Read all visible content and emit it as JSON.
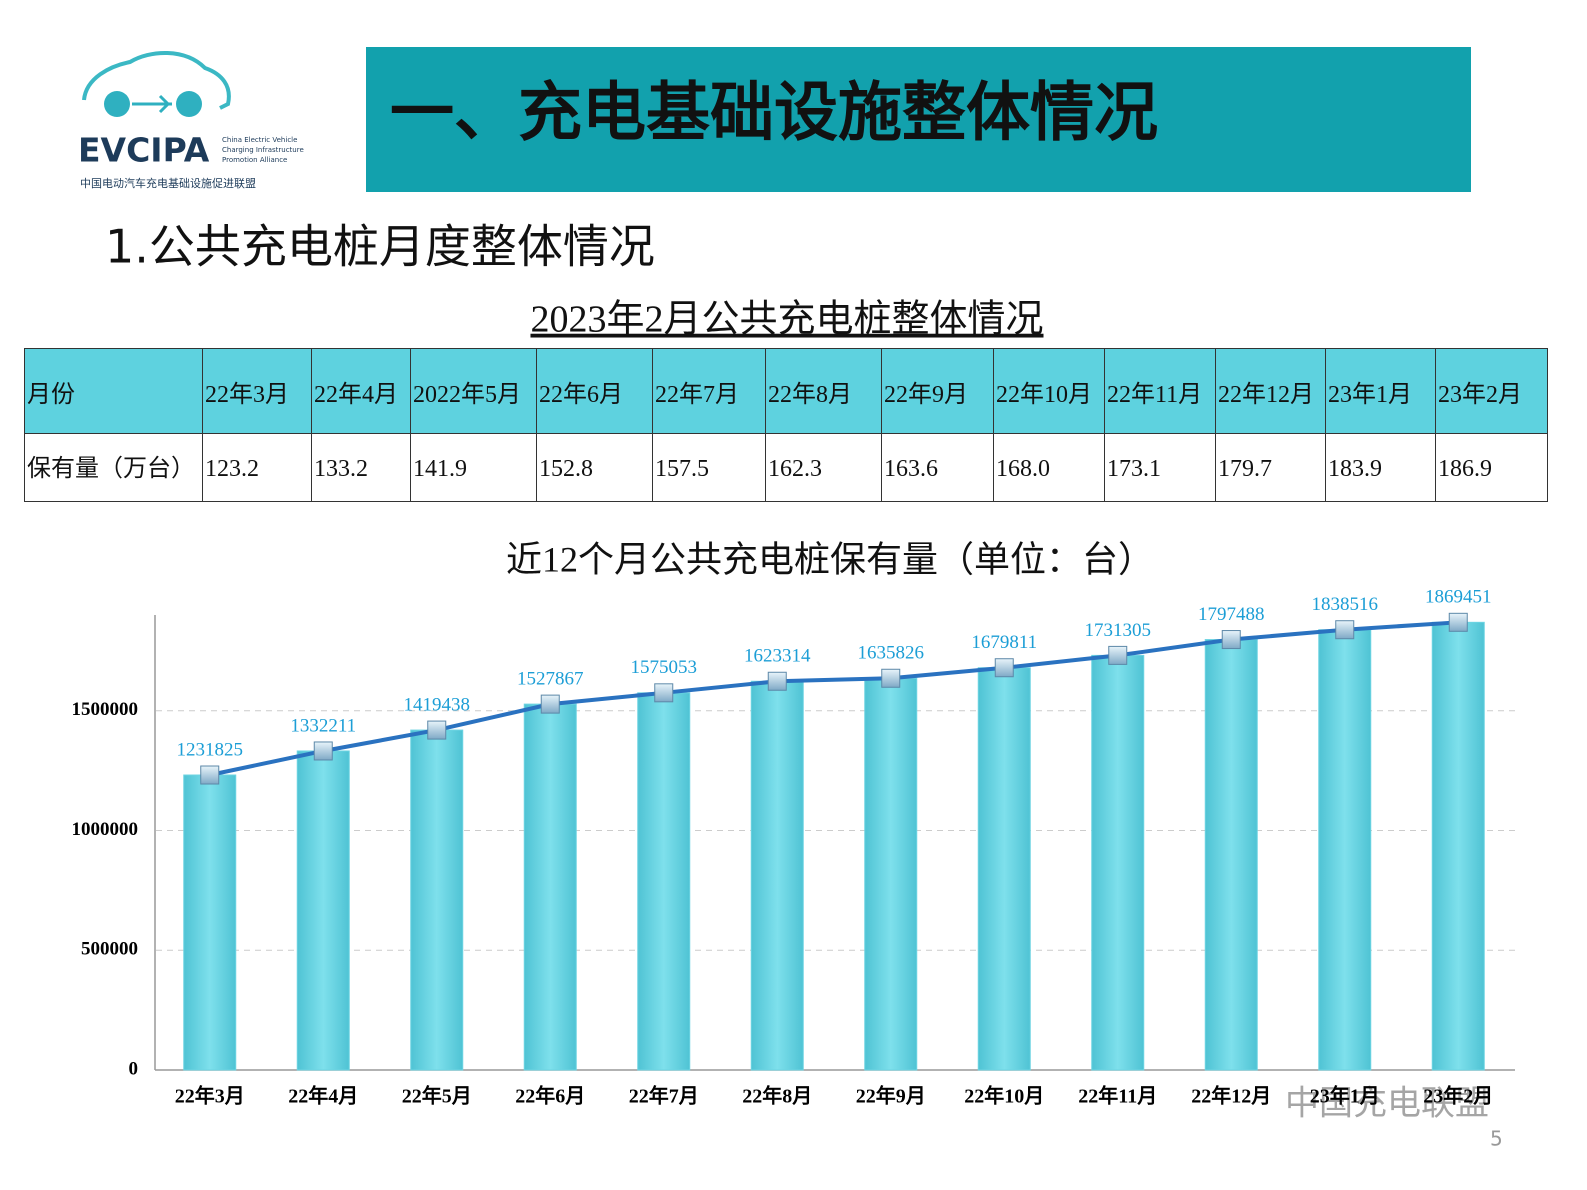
{
  "logo": {
    "name": "EVCIPA",
    "english": [
      "China Electric Vehicle",
      "Charging Infrastructure",
      "Promotion Alliance"
    ],
    "chinese": "中国电动汽车充电基础设施促进联盟"
  },
  "header": {
    "title": "一、充电基础设施整体情况",
    "subtitle": "1.公共充电桩月度整体情况"
  },
  "table": {
    "title": "2023年2月公共充电桩整体情况",
    "rows": [
      [
        "月份",
        "22年3月",
        "22年4月",
        "2022年5月",
        "22年6月",
        "22年7月",
        "22年8月",
        "22年9月",
        "22年10月",
        "22年11月",
        "22年12月",
        "23年1月",
        "23年2月"
      ],
      [
        "保有量（万台）",
        "123.2",
        "133.2",
        "141.9",
        "152.8",
        "157.5",
        "162.3",
        "163.6",
        "168.0",
        "173.1",
        "179.7",
        "183.9",
        "186.9"
      ]
    ]
  },
  "chart_data": {
    "type": "bar",
    "title": "近12个月公共充电桩保有量（单位：台）",
    "categories": [
      "22年3月",
      "22年4月",
      "22年5月",
      "22年6月",
      "22年7月",
      "22年8月",
      "22年9月",
      "22年10月",
      "22年11月",
      "22年12月",
      "23年1月",
      "23年2月"
    ],
    "values": [
      1231825,
      1332211,
      1419438,
      1527867,
      1575053,
      1623314,
      1635826,
      1679811,
      1731305,
      1797488,
      1838516,
      1869451
    ],
    "color": "#6dd4e2",
    "line_color": "#2a72c0",
    "label_color": "#1c9ed6",
    "ylim": [
      0,
      1900000
    ],
    "yticks": [
      0,
      500000,
      1000000,
      1500000
    ],
    "grid": true
  },
  "watermark": "中国充电联盟",
  "page_number": "5"
}
